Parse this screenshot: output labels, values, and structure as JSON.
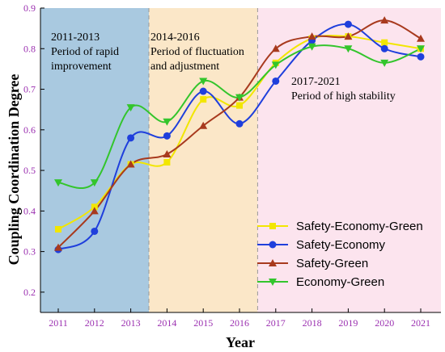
{
  "chart_data": {
    "type": "line",
    "ylabel": "Coupling Coordination Degree",
    "xlabel": "Year",
    "ylim": [
      0.15,
      0.9
    ],
    "yticks": [
      "0.2",
      "0.3",
      "0.4",
      "0.5",
      "0.6",
      "0.7",
      "0.8",
      "0.9"
    ],
    "x": [
      "2011",
      "2012",
      "2013",
      "2014",
      "2015",
      "2016",
      "2017",
      "2018",
      "2019",
      "2020",
      "2021"
    ],
    "grid": false,
    "legend_position": "bottom-right",
    "periods": [
      {
        "label_line1": "2011-2013",
        "label_line2": "Period of rapid",
        "label_line3": "improvement",
        "start": "2011",
        "end": "2013",
        "color": "#a9c9e0"
      },
      {
        "label_line1": "2014-2016",
        "label_line2": "Period of fluctuation",
        "label_line3": "and adjustment",
        "start": "2014",
        "end": "2016",
        "color": "#fbe7c8"
      },
      {
        "label_line1": "2017-2021",
        "label_line2": "Period of high stability",
        "label_line3": "",
        "start": "2017",
        "end": "2021",
        "color": "#fce4ee"
      }
    ],
    "series": [
      {
        "name": "Safety-Economy-Green",
        "color": "#f2e600",
        "marker": "square",
        "values": [
          0.355,
          0.41,
          0.515,
          0.52,
          0.675,
          0.66,
          0.765,
          0.825,
          0.83,
          0.815,
          0.8
        ]
      },
      {
        "name": "Safety-Economy",
        "color": "#1f3fdc",
        "marker": "circle",
        "values": [
          0.305,
          0.35,
          0.58,
          0.585,
          0.695,
          0.615,
          0.72,
          0.82,
          0.86,
          0.8,
          0.78
        ]
      },
      {
        "name": "Safety-Green",
        "color": "#a83a1e",
        "marker": "triangle-up",
        "values": [
          0.31,
          0.4,
          0.515,
          0.54,
          0.61,
          0.68,
          0.8,
          0.83,
          0.83,
          0.87,
          0.825
        ]
      },
      {
        "name": "Economy-Green",
        "color": "#33c52c",
        "marker": "triangle-down",
        "values": [
          0.47,
          0.47,
          0.655,
          0.62,
          0.72,
          0.68,
          0.76,
          0.805,
          0.8,
          0.765,
          0.8
        ]
      }
    ]
  }
}
